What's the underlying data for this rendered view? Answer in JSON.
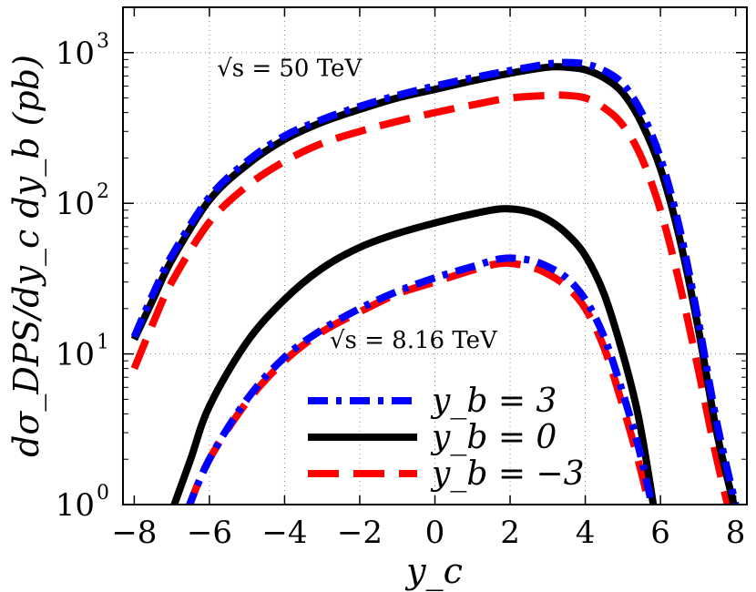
{
  "chart_data": {
    "type": "line",
    "xlabel": "y_c",
    "ylabel": "dσ_DPS/dy_c dy_b (pb)",
    "xlim": [
      -8.3,
      8.3
    ],
    "ylim": [
      1,
      2000
    ],
    "yscale": "log",
    "grid": true,
    "x_ticks": [
      -8,
      -6,
      -4,
      -2,
      0,
      2,
      4,
      6,
      8
    ],
    "x_tick_labels": [
      "−8",
      "−6",
      "−4",
      "−2",
      "0",
      "2",
      "4",
      "6",
      "8"
    ],
    "y_ticks": [
      1,
      10,
      100,
      1000
    ],
    "y_tick_labels": [
      "10",
      "10",
      "10",
      "10"
    ],
    "y_tick_exponents": [
      "0",
      "1",
      "2",
      "3"
    ],
    "annotations": [
      {
        "text": "√s = 50 TeV",
        "x": -5.8,
        "y": 700
      },
      {
        "text": "√s = 8.16 TeV",
        "x": -2.8,
        "y": 11
      }
    ],
    "legend": {
      "placement": "bottom-center",
      "entries": [
        {
          "label": "y_b = 3",
          "color": "#0000ff",
          "style": "dashdot"
        },
        {
          "label": "y_b = 0",
          "color": "#000000",
          "style": "solid"
        },
        {
          "label": "y_b = −3",
          "color": "#ff0000",
          "style": "dashed"
        }
      ]
    },
    "series": [
      {
        "legend": 0,
        "group": "50 TeV",
        "color": "#0000ff",
        "style": "dashdot",
        "x": [
          -8.0,
          -7.5,
          -7.0,
          -6.0,
          -5.0,
          -4.0,
          -3.0,
          -2.0,
          -1.0,
          0.0,
          1.0,
          2.0,
          3.0,
          3.5,
          4.0,
          4.5,
          5.0,
          5.5,
          6.0,
          6.5,
          7.0,
          7.5,
          8.0
        ],
        "y": [
          13,
          25,
          45,
          110,
          190,
          280,
          360,
          440,
          520,
          600,
          680,
          760,
          840,
          860,
          840,
          760,
          620,
          400,
          200,
          70,
          17,
          3.5,
          1
        ]
      },
      {
        "legend": 1,
        "group": "50 TeV",
        "color": "#000000",
        "style": "solid",
        "x": [
          -8.0,
          -7.5,
          -7.0,
          -6.0,
          -5.0,
          -4.0,
          -3.0,
          -2.0,
          -1.0,
          0.0,
          1.0,
          2.0,
          3.0,
          3.5,
          4.0,
          4.5,
          5.0,
          5.5,
          6.0,
          6.5,
          7.0,
          7.5,
          8.0
        ],
        "y": [
          12.5,
          23,
          42,
          105,
          180,
          265,
          345,
          420,
          500,
          570,
          650,
          730,
          800,
          800,
          770,
          680,
          540,
          340,
          170,
          60,
          15,
          3,
          0.9
        ]
      },
      {
        "legend": 2,
        "group": "50 TeV",
        "color": "#ff0000",
        "style": "dashed",
        "x": [
          -8.0,
          -7.5,
          -7.0,
          -6.0,
          -5.0,
          -4.0,
          -3.0,
          -2.0,
          -1.0,
          0.0,
          1.0,
          2.0,
          3.0,
          3.5,
          4.0,
          4.5,
          5.0,
          5.5,
          6.0,
          6.5,
          7.0,
          7.5,
          8.0
        ],
        "y": [
          8,
          16,
          30,
          75,
          130,
          190,
          250,
          300,
          350,
          400,
          450,
          500,
          520,
          520,
          500,
          430,
          330,
          200,
          90,
          30,
          8,
          2,
          0.6
        ]
      },
      {
        "legend": 0,
        "group": "8.16 TeV",
        "color": "#0000ff",
        "style": "dashdot",
        "x": [
          -6.6,
          -6.0,
          -5.0,
          -4.0,
          -3.0,
          -2.0,
          -1.0,
          0.0,
          1.0,
          1.8,
          2.5,
          3.0,
          3.5,
          4.0,
          4.5,
          5.0,
          5.4,
          5.7,
          5.9
        ],
        "y": [
          0.9,
          2.0,
          5.0,
          9.5,
          14.5,
          20,
          26,
          32,
          38,
          43,
          42,
          38,
          32,
          23,
          13,
          5.5,
          2.5,
          1.2,
          0.7
        ]
      },
      {
        "legend": 1,
        "group": "8.16 TeV",
        "color": "#000000",
        "style": "solid",
        "x": [
          -7.0,
          -6.5,
          -6.0,
          -5.0,
          -4.0,
          -3.0,
          -2.0,
          -1.0,
          0.0,
          1.0,
          1.8,
          2.5,
          3.0,
          3.5,
          4.0,
          4.5,
          5.0,
          5.4,
          5.7,
          5.9
        ],
        "y": [
          0.9,
          2.0,
          4.5,
          12,
          23,
          37,
          51,
          63,
          74,
          85,
          92,
          88,
          78,
          63,
          45,
          25,
          10,
          4,
          1.5,
          0.7
        ]
      },
      {
        "legend": 2,
        "group": "8.16 TeV",
        "color": "#ff0000",
        "style": "dashed",
        "x": [
          -6.6,
          -6.0,
          -5.0,
          -4.0,
          -3.0,
          -2.0,
          -1.0,
          0.0,
          1.0,
          1.8,
          2.5,
          3.0,
          3.5,
          4.0,
          4.5,
          5.0,
          5.4,
          5.7,
          5.9
        ],
        "y": [
          0.9,
          2.0,
          4.8,
          9.0,
          14,
          19,
          25,
          30,
          36,
          40,
          38,
          34,
          28,
          20,
          11,
          4.5,
          2.0,
          1.0,
          0.6
        ]
      }
    ]
  }
}
